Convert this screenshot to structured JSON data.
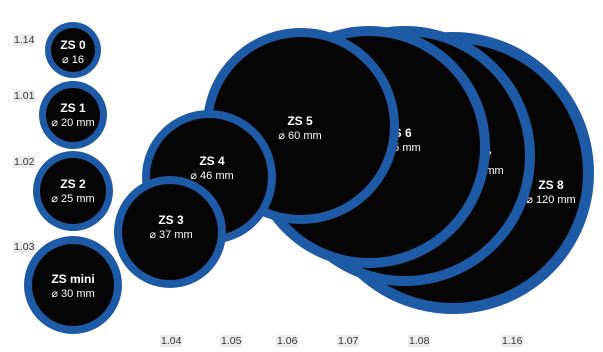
{
  "colors": {
    "ring": "#1f5aa6",
    "disc": "#050505",
    "label": "#ffffff"
  },
  "patches": [
    {
      "id": "zs-8",
      "name": "ZS 8",
      "diameter": "⌀ 120 mm",
      "code": "1.16"
    },
    {
      "id": "zs-7",
      "name": "ZS 7",
      "diameter": "⌀ 100 mm",
      "code": "1.08"
    },
    {
      "id": "zs-6",
      "name": "ZS 6",
      "diameter": "⌀ 75 mm",
      "code": "1.07"
    },
    {
      "id": "zs-5",
      "name": "ZS 5",
      "diameter": "⌀ 60 mm",
      "code": "1.06"
    },
    {
      "id": "zs-4",
      "name": "ZS 4",
      "diameter": "⌀ 46 mm",
      "code": "1.05"
    },
    {
      "id": "zs-3",
      "name": "ZS 3",
      "diameter": "⌀ 37 mm",
      "code": "1.04"
    },
    {
      "id": "zs-mini",
      "name": "ZS mini",
      "diameter": "⌀ 30 mm",
      "code": "1.03"
    },
    {
      "id": "zs-2",
      "name": "ZS 2",
      "diameter": "⌀ 25 mm",
      "code": "1.02"
    },
    {
      "id": "zs-1",
      "name": "ZS 1",
      "diameter": "⌀ 20 mm",
      "code": "1.01"
    },
    {
      "id": "zs-0",
      "name": "ZS 0",
      "diameter": "⌀ 16",
      "code": "1.14"
    }
  ]
}
